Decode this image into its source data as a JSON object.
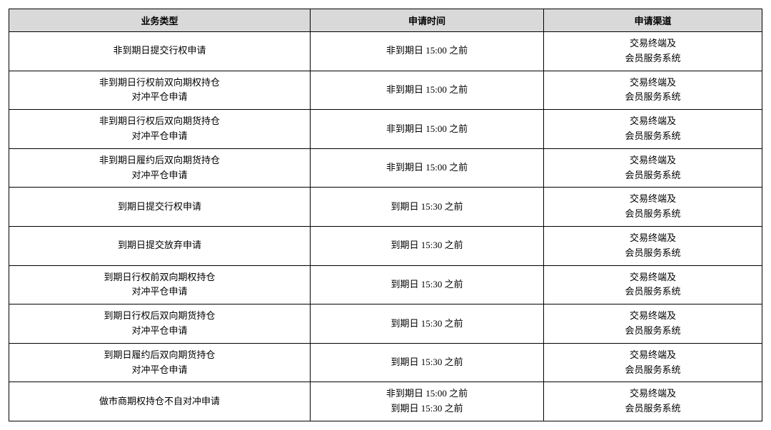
{
  "table": {
    "type": "table",
    "background_color": "#ffffff",
    "header_background": "#d9d9d9",
    "border_color": "#000000",
    "font_family": "SimSun",
    "header_fontsize": 13,
    "cell_fontsize": 13,
    "columns": [
      {
        "key": "type",
        "label": "业务类型",
        "width": "40%"
      },
      {
        "key": "time",
        "label": "申请时间",
        "width": "31%"
      },
      {
        "key": "channel",
        "label": "申请渠道",
        "width": "29%"
      }
    ],
    "rows": [
      {
        "type": [
          "非到期日提交行权申请"
        ],
        "time": [
          "非到期日 15:00 之前"
        ],
        "channel": [
          "交易终端及",
          "会员服务系统"
        ]
      },
      {
        "type": [
          "非到期日行权前双向期权持仓",
          "对冲平仓申请"
        ],
        "time": [
          "非到期日 15:00 之前"
        ],
        "channel": [
          "交易终端及",
          "会员服务系统"
        ]
      },
      {
        "type": [
          "非到期日行权后双向期货持仓",
          "对冲平仓申请"
        ],
        "time": [
          "非到期日 15:00 之前"
        ],
        "channel": [
          "交易终端及",
          "会员服务系统"
        ]
      },
      {
        "type": [
          "非到期日履约后双向期货持仓",
          "对冲平仓申请"
        ],
        "time": [
          "非到期日 15:00 之前"
        ],
        "channel": [
          "交易终端及",
          "会员服务系统"
        ]
      },
      {
        "type": [
          "到期日提交行权申请"
        ],
        "time": [
          "到期日 15:30 之前"
        ],
        "channel": [
          "交易终端及",
          "会员服务系统"
        ]
      },
      {
        "type": [
          "到期日提交放弃申请"
        ],
        "time": [
          "到期日 15:30 之前"
        ],
        "channel": [
          "交易终端及",
          "会员服务系统"
        ]
      },
      {
        "type": [
          "到期日行权前双向期权持仓",
          "对冲平仓申请"
        ],
        "time": [
          "到期日 15:30 之前"
        ],
        "channel": [
          "交易终端及",
          "会员服务系统"
        ]
      },
      {
        "type": [
          "到期日行权后双向期货持仓",
          "对冲平仓申请"
        ],
        "time": [
          "到期日 15:30 之前"
        ],
        "channel": [
          "交易终端及",
          "会员服务系统"
        ]
      },
      {
        "type": [
          "到期日履约后双向期货持仓",
          "对冲平仓申请"
        ],
        "time": [
          "到期日 15:30 之前"
        ],
        "channel": [
          "交易终端及",
          "会员服务系统"
        ]
      },
      {
        "type": [
          "做市商期权持仓不自对冲申请"
        ],
        "time": [
          "非到期日 15:00 之前",
          "到期日 15:30 之前"
        ],
        "channel": [
          "交易终端及",
          "会员服务系统"
        ]
      }
    ]
  }
}
